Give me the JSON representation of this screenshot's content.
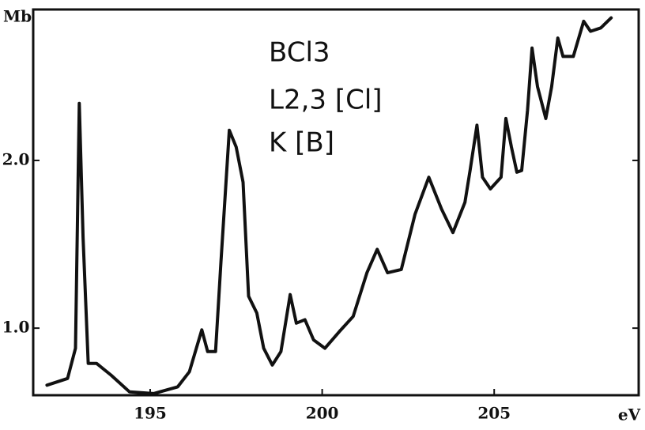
{
  "chart_data": {
    "type": "line",
    "x_label": "eV",
    "y_label": "Mb",
    "annotations": [
      "BCl3",
      "L2,3 [Cl]",
      "K [B]"
    ],
    "xlim": [
      191.6,
      209.2
    ],
    "ylim": [
      0.6,
      2.9
    ],
    "xticks": [
      195,
      200,
      205
    ],
    "yticks": [
      {
        "value": 1,
        "label": "1.0"
      },
      {
        "value": 2,
        "label": "2.0"
      }
    ],
    "series": [
      {
        "color": "#111111",
        "x": [
          192.0,
          192.6,
          192.83,
          192.94,
          193.05,
          193.2,
          193.44,
          193.86,
          194.4,
          195.1,
          195.8,
          196.14,
          196.5,
          196.67,
          196.9,
          197.06,
          197.3,
          197.5,
          197.7,
          197.86,
          198.1,
          198.3,
          198.55,
          198.8,
          199.07,
          199.25,
          199.5,
          199.75,
          200.08,
          200.5,
          200.9,
          201.3,
          201.6,
          201.9,
          202.3,
          202.7,
          203.1,
          203.47,
          203.8,
          204.15,
          204.3,
          204.5,
          204.66,
          204.89,
          205.2,
          205.34,
          205.5,
          205.66,
          205.8,
          205.97,
          206.1,
          206.26,
          206.5,
          206.67,
          206.85,
          207.0,
          207.3,
          207.6,
          207.8,
          208.1,
          208.4
        ],
        "values": [
          0.66,
          0.7,
          0.88,
          2.34,
          1.54,
          0.79,
          0.79,
          0.72,
          0.62,
          0.61,
          0.65,
          0.74,
          0.99,
          0.86,
          0.86,
          1.4,
          2.18,
          2.08,
          1.87,
          1.19,
          1.09,
          0.88,
          0.78,
          0.86,
          1.2,
          1.03,
          1.05,
          0.93,
          0.88,
          0.98,
          1.07,
          1.33,
          1.47,
          1.33,
          1.35,
          1.68,
          1.9,
          1.71,
          1.57,
          1.75,
          1.94,
          2.21,
          1.9,
          1.83,
          1.9,
          2.25,
          2.08,
          1.93,
          1.94,
          2.3,
          2.67,
          2.44,
          2.25,
          2.44,
          2.73,
          2.62,
          2.62,
          2.83,
          2.77,
          2.79,
          2.85
        ]
      }
    ]
  }
}
